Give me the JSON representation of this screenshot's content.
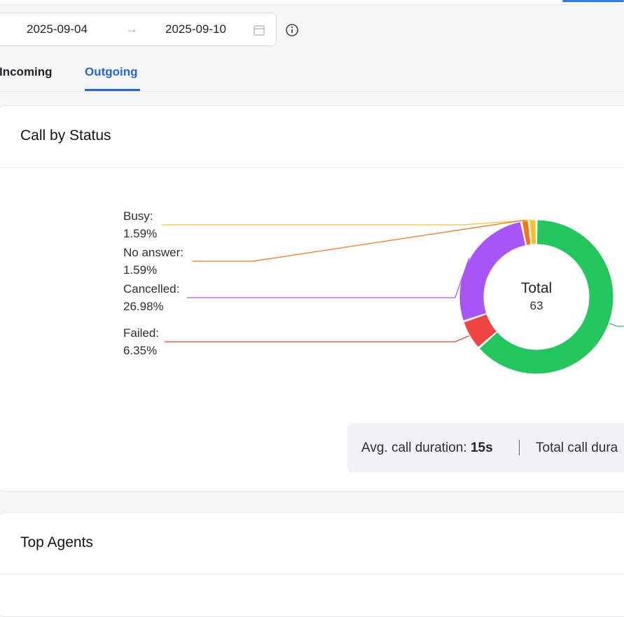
{
  "filters": {
    "date_start": "2025-09-04",
    "date_end": "2025-09-10",
    "arrow": "→"
  },
  "tabs": [
    {
      "label": "Incoming",
      "active": false
    },
    {
      "label": "Outgoing",
      "active": true
    }
  ],
  "status_card": {
    "title": "Call by Status",
    "center_title": "Total",
    "center_value": "63",
    "summary": {
      "avg_label": "Avg. call duration:",
      "avg_value": "15s",
      "total_label": "Total call dura"
    }
  },
  "agents_card": {
    "title": "Top Agents"
  },
  "chart_data": {
    "type": "pie",
    "total": 63,
    "slices": [
      {
        "label": "Busy",
        "percent": 1.59,
        "percent_text": "1.59%",
        "color": "#f5c12e"
      },
      {
        "label": "No answer",
        "percent": 1.59,
        "percent_text": "1.59%",
        "color": "#f97316"
      },
      {
        "label": "Cancelled",
        "percent": 26.98,
        "percent_text": "26.98%",
        "color": "#a855f7"
      },
      {
        "label": "Failed",
        "percent": 6.35,
        "percent_text": "6.35%",
        "color": "#ef4444"
      },
      {
        "label": "",
        "percent": 63.49,
        "percent_text": "",
        "color": "#22c55e"
      }
    ]
  },
  "colors": {
    "accent": "#2563eb",
    "busy": "#f5c12e",
    "no_answer": "#f97316",
    "cancelled": "#a855f7",
    "failed": "#ef4444",
    "completed": "#22c55e"
  }
}
